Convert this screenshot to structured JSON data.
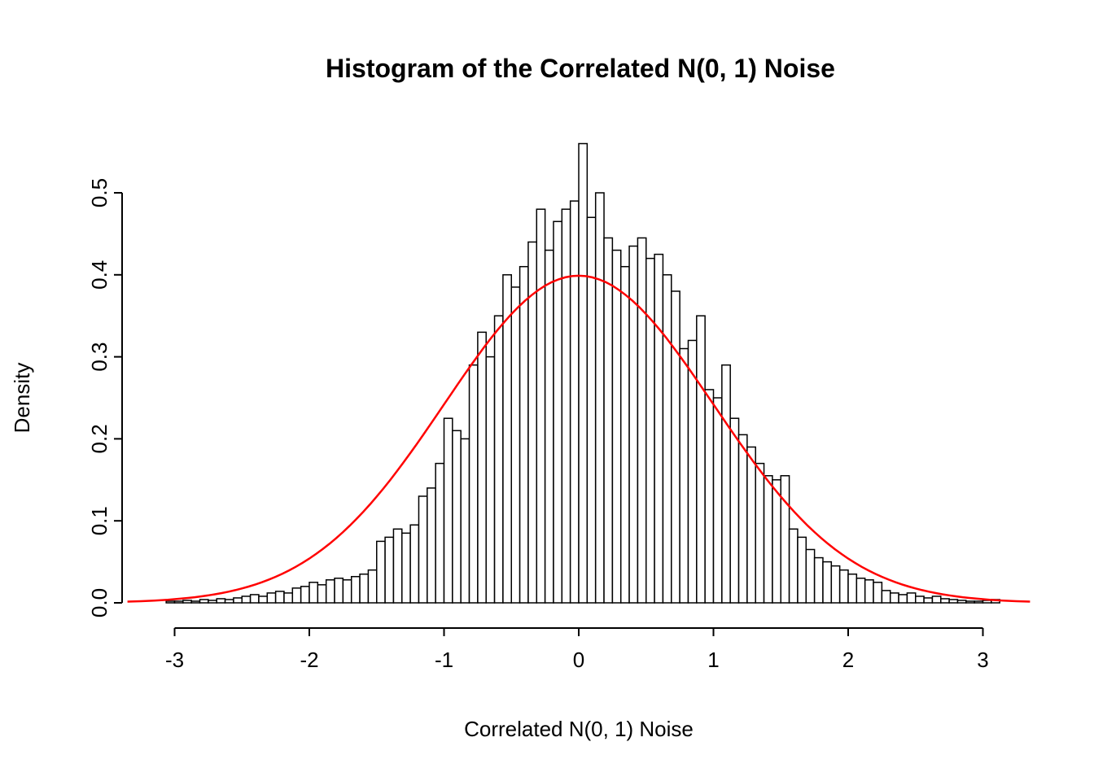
{
  "page": {
    "background": "#FFFFFF"
  },
  "chart_data": {
    "type": "bar",
    "subtype": "histogram",
    "title": "Histogram of the Correlated N(0, 1) Noise",
    "xlabel": "Correlated N(0, 1) Noise",
    "ylabel": "Density",
    "x_ticks": [
      "-3",
      "-2",
      "-1",
      "0",
      "1",
      "2",
      "3"
    ],
    "y_ticks": [
      "0.0",
      "0.1",
      "0.2",
      "0.3",
      "0.4",
      "0.5"
    ],
    "xlim": [
      -3.35,
      3.35
    ],
    "ylim": [
      0,
      0.56
    ],
    "grid": "off",
    "legend": "none",
    "bar_fill": "#FFFFFF",
    "bar_stroke": "#000000",
    "bins": {
      "start": -3.125,
      "width": 0.0625,
      "heights": [
        0.0,
        0.002,
        0.002,
        0.003,
        0.002,
        0.004,
        0.003,
        0.005,
        0.004,
        0.006,
        0.008,
        0.01,
        0.008,
        0.012,
        0.014,
        0.012,
        0.018,
        0.02,
        0.025,
        0.022,
        0.028,
        0.03,
        0.028,
        0.032,
        0.035,
        0.04,
        0.075,
        0.08,
        0.09,
        0.085,
        0.095,
        0.13,
        0.14,
        0.17,
        0.225,
        0.21,
        0.2,
        0.29,
        0.33,
        0.3,
        0.35,
        0.4,
        0.385,
        0.41,
        0.44,
        0.48,
        0.43,
        0.465,
        0.48,
        0.49,
        0.56,
        0.47,
        0.5,
        0.445,
        0.43,
        0.41,
        0.435,
        0.445,
        0.42,
        0.425,
        0.4,
        0.38,
        0.31,
        0.32,
        0.35,
        0.26,
        0.25,
        0.29,
        0.225,
        0.205,
        0.19,
        0.17,
        0.155,
        0.15,
        0.155,
        0.09,
        0.08,
        0.065,
        0.055,
        0.05,
        0.045,
        0.04,
        0.035,
        0.03,
        0.028,
        0.025,
        0.015,
        0.012,
        0.01,
        0.012,
        0.008,
        0.006,
        0.008,
        0.005,
        0.004,
        0.003,
        0.002,
        0.002,
        0.003,
        0.004
      ]
    },
    "overlay_curve": {
      "name": "normal-density",
      "mean": 0,
      "sd": 1,
      "x_range": [
        -3.35,
        3.35
      ],
      "color": "#FF0000"
    }
  }
}
